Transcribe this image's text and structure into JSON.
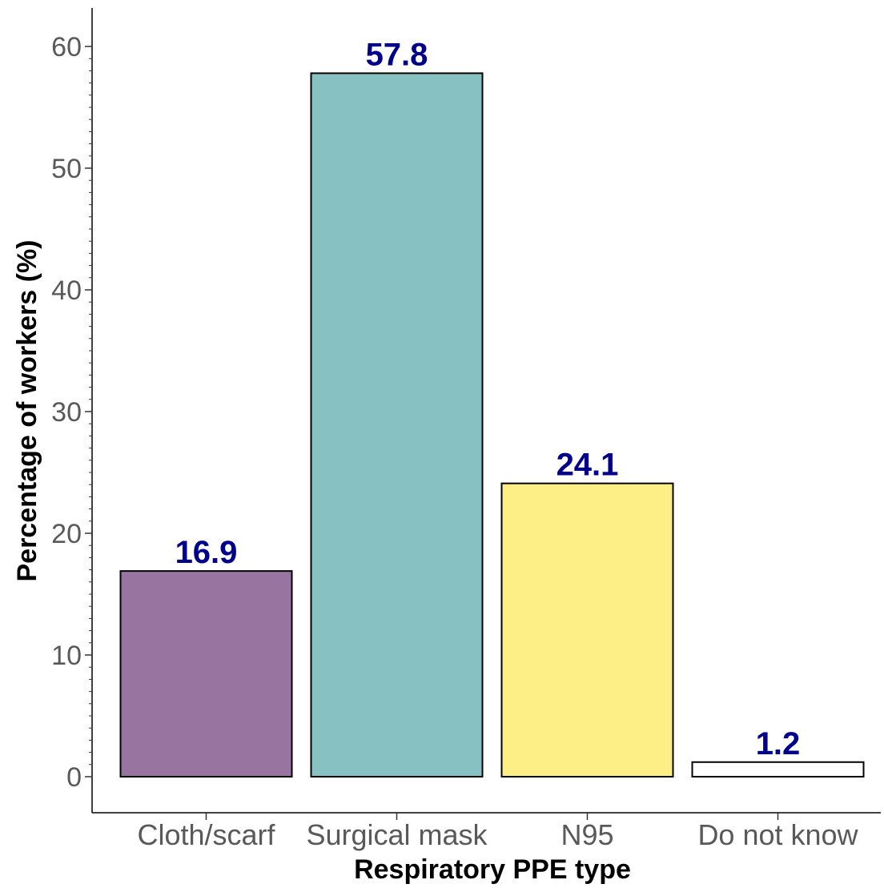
{
  "chart_data": {
    "type": "bar",
    "categories": [
      "Cloth/scarf",
      "Surgical mask",
      "N95",
      "Do not know"
    ],
    "values": [
      16.9,
      57.8,
      24.1,
      1.2
    ],
    "data_labels": [
      "16.9",
      "57.8",
      "24.1",
      "1.2"
    ],
    "colors": [
      "#9874a1",
      "#88c1c1",
      "#fdef86",
      "#ffffff"
    ],
    "bar_outline_color": "#000000",
    "data_label_color": "#00008b",
    "xlabel": "Respiratory PPE type",
    "ylabel": "Percentage of workers (%)",
    "ylim": [
      0,
      60
    ],
    "yticks": [
      0,
      10,
      20,
      30,
      40,
      50,
      60
    ],
    "ytick_labels": [
      "0",
      "10",
      "20",
      "30",
      "40",
      "50",
      "60"
    ],
    "minor_ticks_y": true,
    "grid": false,
    "legend": "none"
  }
}
